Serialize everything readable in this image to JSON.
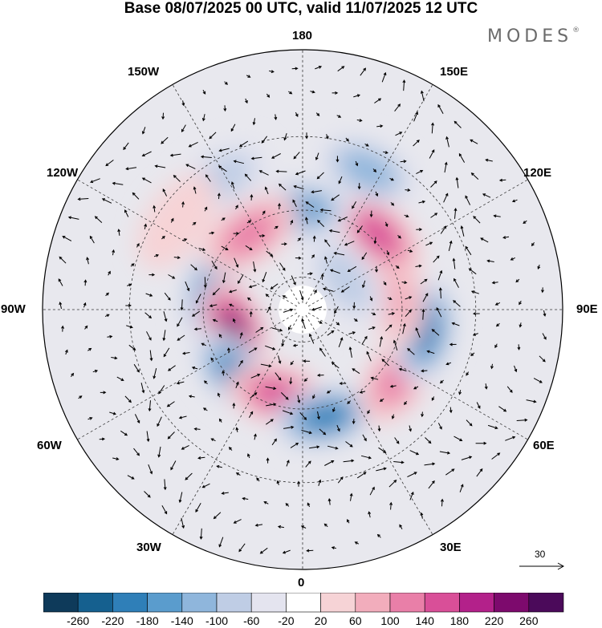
{
  "header": {
    "title": "Base 08/07/2025 00 UTC, valid 11/07/2025 12 UTC",
    "brand": "MODES",
    "brand_mark": "®"
  },
  "map": {
    "projection": "north polar stereographic",
    "field": "filled anomaly contours with wind vectors",
    "longitude_labels": {
      "top": "180",
      "top_left": "150W",
      "top_right": "150E",
      "upper_left": "120W",
      "upper_right": "120E",
      "left": "90W",
      "right": "90E",
      "lower_left": "60W",
      "lower_right": "60E",
      "bottom_left": "30W",
      "bottom_right": "30E",
      "bottom": "0"
    },
    "reference_vector": {
      "label": "30"
    },
    "anomaly_centres": [
      {
        "lon": -100,
        "lat": 62,
        "value": -180
      },
      {
        "lon": -72,
        "lat": 68,
        "value": 240
      },
      {
        "lon": -45,
        "lat": 62,
        "value": -220
      },
      {
        "lon": -15,
        "lat": 63,
        "value": 180
      },
      {
        "lon": 12,
        "lat": 57,
        "value": -200
      },
      {
        "lon": 55,
        "lat": 55,
        "value": 140
      },
      {
        "lon": 80,
        "lat": 53,
        "value": -200
      },
      {
        "lon": 100,
        "lat": 62,
        "value": 100
      },
      {
        "lon": 135,
        "lat": 58,
        "value": 160
      },
      {
        "lon": 155,
        "lat": 45,
        "value": -120
      },
      {
        "lon": -178,
        "lat": 60,
        "value": -160
      },
      {
        "lon": -145,
        "lat": 62,
        "value": 140
      },
      {
        "lon": -148,
        "lat": 45,
        "value": -80
      },
      {
        "lon": -125,
        "lat": 45,
        "value": 60
      },
      {
        "lon": 125,
        "lat": 74,
        "value": -80
      }
    ]
  },
  "colorbar": {
    "levels": [
      "-260",
      "-220",
      "-180",
      "-140",
      "-100",
      "-60",
      "-20",
      "20",
      "60",
      "100",
      "140",
      "180",
      "220",
      "260"
    ],
    "colors": [
      "#0e3a5a",
      "#15608f",
      "#2f7fb8",
      "#5a9ccd",
      "#8fb6dc",
      "#bfcde5",
      "#e4e4ef",
      "#ffffff",
      "#f6d3d6",
      "#f2adbc",
      "#e97fa8",
      "#d94f98",
      "#b3218a",
      "#7d0a6d",
      "#4b0a5a"
    ]
  }
}
